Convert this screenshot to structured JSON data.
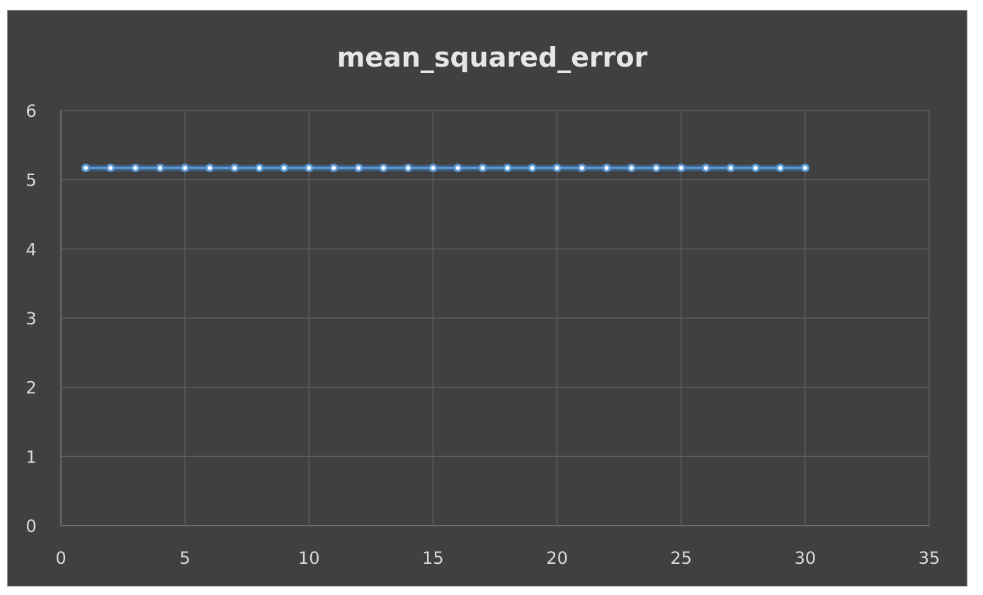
{
  "chart_data": {
    "type": "line",
    "title": "mean_squared_error",
    "xlabel": "",
    "ylabel": "",
    "xlim": [
      0,
      35
    ],
    "ylim": [
      0,
      6
    ],
    "x_ticks": [
      0,
      5,
      10,
      15,
      20,
      25,
      30,
      35
    ],
    "y_ticks": [
      0,
      1,
      2,
      3,
      4,
      5,
      6
    ],
    "grid": true,
    "legend": "none",
    "series": [
      {
        "color": "#5b9bd5",
        "x": [
          1,
          2,
          3,
          4,
          5,
          6,
          7,
          8,
          9,
          10,
          11,
          12,
          13,
          14,
          15,
          16,
          17,
          18,
          19,
          20,
          21,
          22,
          23,
          24,
          25,
          26,
          27,
          28,
          29,
          30
        ],
        "values": [
          5.17,
          5.17,
          5.17,
          5.17,
          5.17,
          5.17,
          5.17,
          5.17,
          5.17,
          5.17,
          5.17,
          5.17,
          5.17,
          5.17,
          5.17,
          5.17,
          5.17,
          5.17,
          5.17,
          5.17,
          5.17,
          5.17,
          5.17,
          5.17,
          5.17,
          5.17,
          5.17,
          5.17,
          5.17,
          5.17
        ]
      }
    ]
  },
  "colors": {
    "background": "#404040",
    "gridline": "#5e5e5e",
    "text": "#d9d9d9",
    "title": "#e6e6e6"
  }
}
